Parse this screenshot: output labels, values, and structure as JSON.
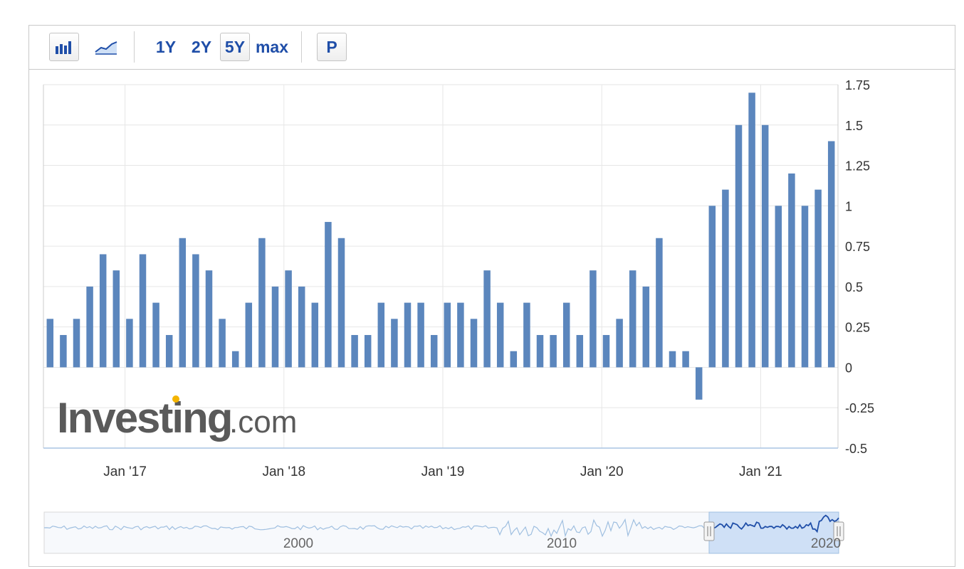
{
  "toolbar": {
    "bar_chart_icon": "bar-chart-icon",
    "area_chart_icon": "area-chart-icon",
    "range_1y": "1Y",
    "range_2y": "2Y",
    "range_5y": "5Y",
    "range_max": "max",
    "selected_range": "5Y",
    "p_button": "P"
  },
  "watermark": {
    "brand": "Investing",
    "domain": ".com",
    "accent_color": "#f4b400"
  },
  "colors": {
    "bar": "#5b86bd",
    "navigator_line": "#9fbfe0",
    "navigator_selected_fill": "#cfe0f6",
    "navigator_selected_line": "#1f4ea8"
  },
  "navigator": {
    "tick_labels": [
      "2000",
      "2010",
      "2020"
    ],
    "selected_range": "5Y"
  },
  "chart_data": {
    "type": "bar",
    "title": "",
    "xlabel": "",
    "ylabel": "",
    "ylim": [
      -0.5,
      1.75
    ],
    "y_ticks": [
      "1.75",
      "1.5",
      "1.25",
      "1",
      "0.75",
      "0.5",
      "0.25",
      "0",
      "-0.25",
      "-0.5"
    ],
    "x_tick_labels": [
      "Jan '17",
      "Jan '18",
      "Jan '19",
      "Jan '20",
      "Jan '21"
    ],
    "x_tick_bar_index": [
      6,
      18,
      30,
      42,
      54
    ],
    "grid": true,
    "values": [
      0.3,
      0.2,
      0.3,
      0.5,
      0.7,
      0.6,
      0.3,
      0.7,
      0.4,
      0.2,
      0.8,
      0.7,
      0.6,
      0.3,
      0.1,
      0.4,
      0.8,
      0.5,
      0.6,
      0.5,
      0.4,
      0.9,
      0.8,
      0.2,
      0.2,
      0.4,
      0.3,
      0.4,
      0.4,
      0.2,
      0.4,
      0.4,
      0.3,
      0.6,
      0.4,
      0.1,
      0.4,
      0.2,
      0.2,
      0.4,
      0.2,
      0.6,
      0.2,
      0.3,
      0.6,
      0.5,
      0.8,
      0.1,
      0.1,
      -0.2,
      1.0,
      1.1,
      1.5,
      1.7,
      1.5,
      1.0,
      1.2,
      1.0,
      1.1,
      1.4
    ]
  }
}
